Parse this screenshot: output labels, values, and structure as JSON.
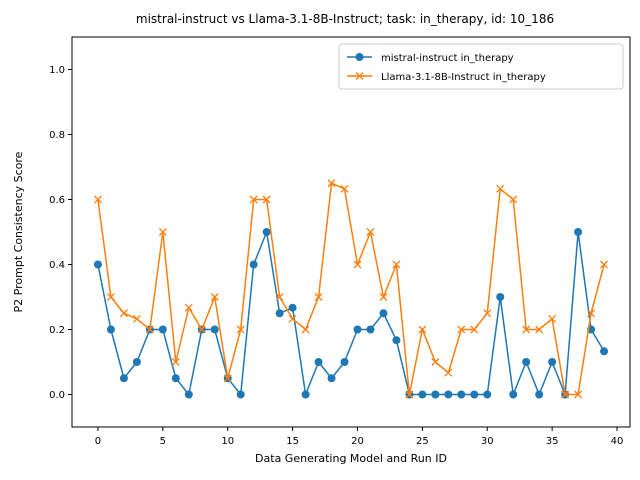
{
  "chart_data": {
    "type": "line",
    "title": "mistral-instruct vs Llama-3.1-8B-Instruct; task: in_therapy, id: 10_186",
    "xlabel": "Data Generating Model and Run ID",
    "ylabel": "P2 Prompt Consistency Score",
    "xlim": [
      -2,
      41
    ],
    "ylim": [
      -0.1,
      1.1
    ],
    "xticks": [
      0,
      5,
      10,
      15,
      20,
      25,
      30,
      35,
      40
    ],
    "yticks": [
      0.0,
      0.2,
      0.4,
      0.6,
      0.8,
      1.0
    ],
    "xtick_labels": [
      "0",
      "5",
      "10",
      "15",
      "20",
      "25",
      "30",
      "35",
      "40"
    ],
    "ytick_labels": [
      "0.0",
      "0.2",
      "0.4",
      "0.6",
      "0.8",
      "1.0"
    ],
    "legend_position": "top-right",
    "x": [
      0,
      1,
      2,
      3,
      4,
      5,
      6,
      7,
      8,
      9,
      10,
      11,
      12,
      13,
      14,
      15,
      16,
      17,
      18,
      19,
      20,
      21,
      22,
      23,
      24,
      25,
      26,
      27,
      28,
      29,
      30,
      31,
      32,
      33,
      34,
      35,
      36,
      37,
      38,
      39
    ],
    "series": [
      {
        "name": "mistral-instruct in_therapy",
        "color": "#1f77b4",
        "marker": "circle",
        "values": [
          0.4,
          0.2,
          0.05,
          0.1,
          0.2,
          0.2,
          0.05,
          0.0,
          0.2,
          0.2,
          0.05,
          0.0,
          0.4,
          0.5,
          0.25,
          0.267,
          0.0,
          0.1,
          0.05,
          0.1,
          0.2,
          0.2,
          0.25,
          0.167,
          0.0,
          0.0,
          0.0,
          0.0,
          0.0,
          0.0,
          0.0,
          0.3,
          0.0,
          0.1,
          0.0,
          0.1,
          0.0,
          0.5,
          0.2,
          0.133
        ]
      },
      {
        "name": "Llama-3.1-8B-Instruct in_therapy",
        "color": "#ff7f0e",
        "marker": "x",
        "values": [
          0.6,
          0.3,
          0.25,
          0.233,
          0.2,
          0.5,
          0.1,
          0.267,
          0.2,
          0.3,
          0.05,
          0.2,
          0.6,
          0.6,
          0.3,
          0.233,
          0.2,
          0.3,
          0.65,
          0.633,
          0.4,
          0.5,
          0.3,
          0.4,
          0.0,
          0.2,
          0.1,
          0.067,
          0.2,
          0.2,
          0.25,
          0.633,
          0.6,
          0.2,
          0.2,
          0.233,
          0.0,
          0.0,
          0.25,
          0.4
        ]
      }
    ]
  }
}
